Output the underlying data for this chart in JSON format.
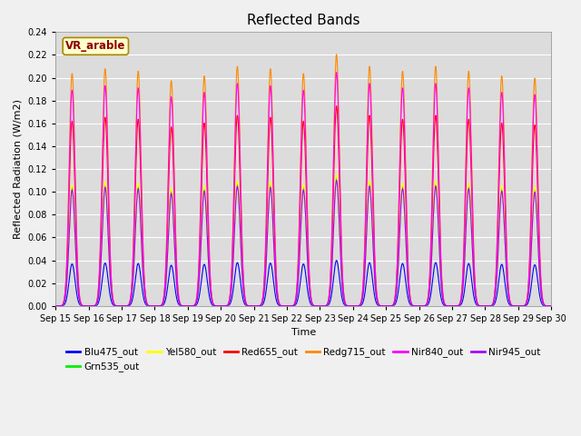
{
  "title": "Reflected Bands",
  "xlabel": "Time",
  "ylabel": "Reflected Radiation (W/m2)",
  "ylim": [
    0,
    0.24
  ],
  "annotation": "VR_arable",
  "plot_bg_color": "#dcdcdc",
  "fig_bg_color": "#f0f0f0",
  "series": [
    {
      "label": "Blu475_out",
      "color": "#0000ff",
      "peak": 0.038
    },
    {
      "label": "Grn535_out",
      "color": "#00ee00",
      "peak": 0.107
    },
    {
      "label": "Yel580_out",
      "color": "#ffff00",
      "peak": 0.11
    },
    {
      "label": "Red655_out",
      "color": "#ff0000",
      "peak": 0.167
    },
    {
      "label": "Redg715_out",
      "color": "#ff8800",
      "peak": 0.21
    },
    {
      "label": "Nir840_out",
      "color": "#ff00ff",
      "peak": 0.195
    },
    {
      "label": "Nir945_out",
      "color": "#aa00ff",
      "peak": 0.105
    }
  ],
  "date_start": 15,
  "n_days": 15,
  "pts_per_day": 200,
  "sigma": 0.09,
  "peak_variations": [
    0.97,
    0.99,
    0.98,
    0.94,
    0.96,
    1.0,
    0.99,
    0.97,
    1.05,
    1.0,
    0.98,
    1.0,
    0.98,
    0.96,
    0.95
  ],
  "yticks": [
    0.0,
    0.02,
    0.04,
    0.06,
    0.08,
    0.1,
    0.12,
    0.14,
    0.16,
    0.18,
    0.2,
    0.22,
    0.24
  ],
  "legend_ncol": 6,
  "legend_fontsize": 7.5,
  "title_fontsize": 11,
  "axis_fontsize": 8,
  "tick_fontsize": 7
}
